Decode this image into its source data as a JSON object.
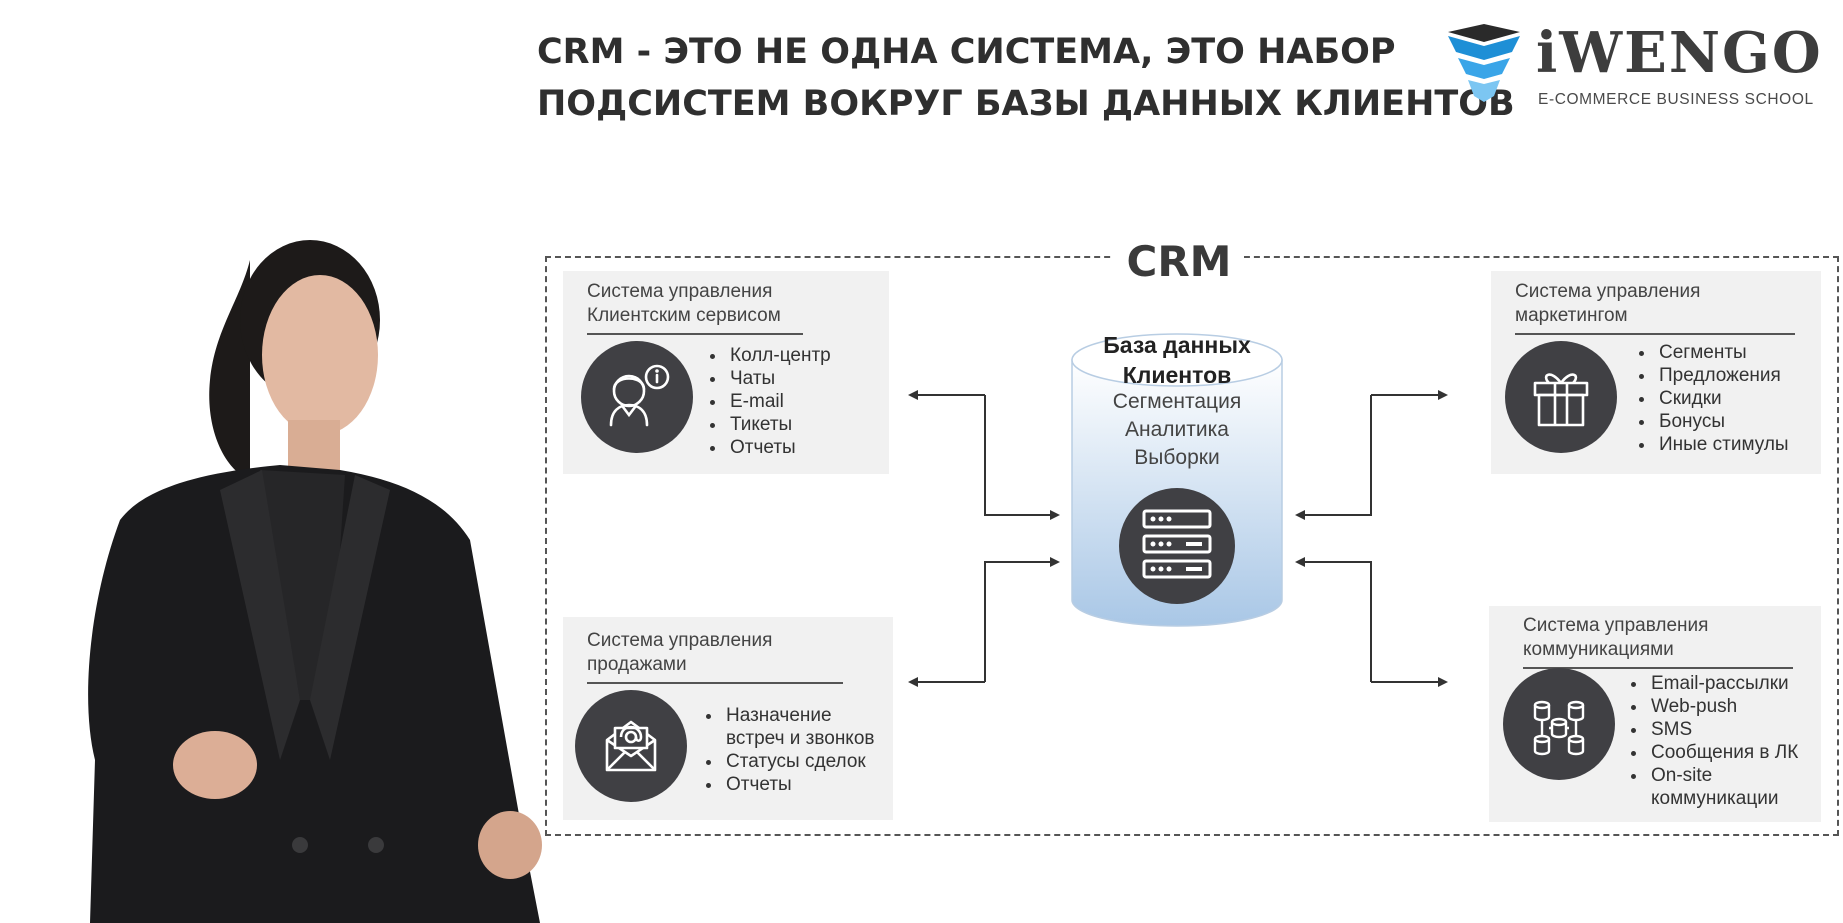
{
  "title": {
    "line1": "CRM - ЭТО НЕ ОДНА СИСТЕМА, ЭТО НАБОР",
    "line2": "ПОДСИСТЕМ ВОКРУГ БАЗЫ ДАННЫХ КЛИЕНТОВ"
  },
  "logo": {
    "name": "iWENGO",
    "tagline": "E-COMMERCE BUSINESS SCHOOL"
  },
  "crm_label": "CRM",
  "database": {
    "title_line1": "База данных",
    "title_line2": "Клиентов",
    "lines": [
      "Сегментация",
      "Аналитика",
      "Выборки"
    ],
    "icon": "server-rack-icon"
  },
  "subsystems": {
    "client_service": {
      "title_line1": "Система управления",
      "title_line2": "Клиентским сервисом",
      "icon": "support-agent-icon",
      "items": [
        "Колл-центр",
        "Чаты",
        "E-mail",
        "Тикеты",
        "Отчеты"
      ]
    },
    "sales": {
      "title_line1": "Система управления",
      "title_line2": "продажами",
      "icon": "envelope-at-icon",
      "items": [
        "Назначение",
        "встреч и звонков",
        "Статусы сделок",
        "Отчеты"
      ]
    },
    "marketing": {
      "title_line1": "Система управления",
      "title_line2": "маркетингом",
      "icon": "gift-box-icon",
      "items": [
        "Сегменты",
        "Предложения",
        "Скидки",
        "Бонусы",
        "Иные стимулы"
      ]
    },
    "communications": {
      "title_line1": "Система управления",
      "title_line2": "коммуникациями",
      "icon": "database-network-icon",
      "items": [
        "Email-рассылки",
        "Web-push",
        "SMS",
        "Сообщения в ЛК",
        "On-site",
        "коммуникации"
      ]
    }
  },
  "colors": {
    "circle": "#404044",
    "card": "#f1f1f1",
    "logo_blue": "#1e8fd6",
    "db_top": "#ffffff",
    "db_bottom": "#a9c7e6"
  }
}
